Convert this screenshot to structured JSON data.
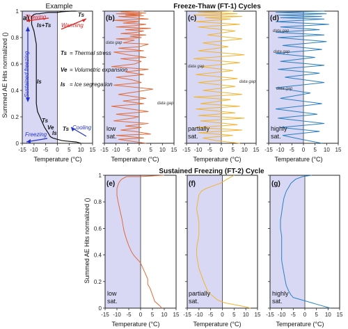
{
  "figure": {
    "top_title": "Freeze-Thaw (FT-1) Cycles",
    "bottom_title": "Sustained Freezing (FT-2) Cycle",
    "ylabel": "Summed AE Hits normalized ()",
    "xlabel": "Temperature (°C)"
  },
  "colors": {
    "shade": "#d8d8f5",
    "low": "#e06a3a",
    "partial": "#f2b431",
    "high": "#2a7fc0",
    "blue_text": "#2233cc",
    "red_text": "#dd2222"
  },
  "example": {
    "panel_label": "a)",
    "title": "Example",
    "thawing": "Thawing",
    "warming": "Warming",
    "cooling": "Cooling",
    "freezing": "Freezing",
    "sustained": "Sustained freezing",
    "ts1": "Ts",
    "is_ts": "Is+Ts",
    "is_mid": "Is",
    "ve": "Ve",
    "ts_low": "Ts",
    "is_low": "Is",
    "ts2": "Ts",
    "legend_ts": "Ts",
    "legend_ts_text": "= Thermal stress",
    "legend_ve": "Ve",
    "legend_ve_text": "= Volumetric expansion",
    "legend_is": "Is",
    "legend_is_text": "= Ice segregation"
  },
  "panels": {
    "b": {
      "label": "(b)",
      "caption1": "low",
      "caption2": "sat.",
      "gap1": "data gap",
      "gap2": "data gap"
    },
    "c": {
      "label": "(c)",
      "caption1": "partially",
      "caption2": "sat.",
      "gap1": "data gap",
      "gap2": "data gap"
    },
    "d": {
      "label": "(d)",
      "caption1": "highly",
      "caption2": "sat.",
      "gap1": "data gap",
      "gap2": "data gap",
      "gap3": "data gap"
    },
    "e": {
      "label": "(e)",
      "caption1": "low",
      "caption2": "sat."
    },
    "f": {
      "label": "(f)",
      "caption1": "partially",
      "caption2": "sat."
    },
    "g": {
      "label": "(g)",
      "caption1": "highly",
      "caption2": "sat."
    }
  },
  "chart_data": [
    {
      "id": "a",
      "type": "line",
      "xlim": [
        -15,
        15
      ],
      "ylim": [
        0,
        1
      ],
      "xticks": [
        -15,
        -10,
        -5,
        0,
        5,
        10,
        15
      ],
      "yticks": [
        0,
        0.2,
        0.4,
        0.6,
        0.8,
        1
      ],
      "series": [
        {
          "color": "#111111",
          "x": [
            10,
            8,
            5,
            2,
            0,
            -2,
            -3,
            -4,
            -5.5,
            -6.5,
            -7.5,
            -8.5,
            -9,
            -9,
            -9,
            -9,
            -10,
            -11,
            -11,
            -11,
            -10,
            -9,
            -8,
            -6,
            -4,
            -2,
            0,
            2,
            4,
            6,
            8
          ],
          "y": [
            0,
            0.01,
            0.015,
            0.02,
            0.03,
            0.04,
            0.05,
            0.08,
            0.12,
            0.16,
            0.2,
            0.24,
            0.3,
            0.45,
            0.6,
            0.75,
            0.85,
            0.9,
            0.94,
            0.96,
            0.975,
            0.98,
            0.98,
            0.985,
            0.99,
            0.99,
            0.99,
            0.995,
            0.998,
            1.0,
            1.0
          ]
        }
      ]
    },
    {
      "id": "b",
      "type": "line",
      "xlim": [
        -15,
        15
      ],
      "ylim": [
        0,
        1
      ],
      "xticks": [
        -15,
        -10,
        -5,
        0,
        5,
        10,
        15
      ],
      "yticks": [
        0,
        0.2,
        0.4,
        0.6,
        0.8,
        1
      ],
      "series": [
        {
          "color": "#e06a3a",
          "x": [
            3,
            -1,
            -5,
            -9,
            2,
            -10,
            5,
            -2,
            -8,
            1,
            -6,
            4,
            -11,
            -3,
            0,
            -10,
            4,
            -4,
            -12,
            2,
            -7,
            3,
            -9,
            -1,
            6,
            -11,
            1,
            -3,
            -10,
            2,
            -6,
            4,
            -12,
            -2,
            1,
            -8,
            3,
            -5,
            -11,
            2,
            -9,
            0,
            4,
            -7,
            -2,
            -10,
            1,
            -4,
            3,
            -8,
            -1,
            2,
            -6,
            5,
            -10,
            -2,
            3,
            -7,
            0,
            -11,
            4,
            -3,
            -9,
            2,
            -6,
            1,
            -10,
            3,
            -4,
            -8,
            2
          ],
          "y": [
            0,
            0.01,
            0.02,
            0.03,
            0.04,
            0.06,
            0.07,
            0.09,
            0.1,
            0.12,
            0.13,
            0.15,
            0.17,
            0.19,
            0.2,
            0.22,
            0.24,
            0.26,
            0.28,
            0.3,
            0.32,
            0.34,
            0.37,
            0.39,
            0.41,
            0.44,
            0.46,
            0.48,
            0.5,
            0.52,
            0.54,
            0.56,
            0.58,
            0.6,
            0.62,
            0.64,
            0.65,
            0.67,
            0.69,
            0.7,
            0.72,
            0.73,
            0.75,
            0.76,
            0.78,
            0.79,
            0.8,
            0.81,
            0.82,
            0.83,
            0.84,
            0.85,
            0.86,
            0.87,
            0.88,
            0.89,
            0.9,
            0.91,
            0.92,
            0.93,
            0.94,
            0.95,
            0.96,
            0.965,
            0.97,
            0.975,
            0.98,
            0.985,
            0.99,
            0.995,
            1.0
          ]
        }
      ]
    },
    {
      "id": "c",
      "type": "line",
      "xlim": [
        -15,
        15
      ],
      "ylim": [
        0,
        1
      ],
      "xticks": [
        -15,
        -10,
        -5,
        0,
        5,
        10,
        15
      ],
      "yticks": [
        0,
        0.2,
        0.4,
        0.6,
        0.8,
        1
      ],
      "series": [
        {
          "color": "#f2b431",
          "x": [
            8,
            -2,
            -8,
            5,
            -10,
            9,
            -11,
            7,
            -9,
            10,
            -10,
            6,
            -11,
            8,
            -9,
            4,
            -12,
            9,
            -8,
            6,
            -10,
            7,
            -11,
            5,
            -9,
            8,
            -12,
            10,
            -10,
            3,
            -8,
            9,
            -6,
            6,
            -10,
            8,
            -11,
            4,
            -7,
            9,
            -12,
            7,
            -10,
            5
          ],
          "y": [
            0,
            0.02,
            0.04,
            0.06,
            0.08,
            0.1,
            0.12,
            0.14,
            0.17,
            0.19,
            0.21,
            0.23,
            0.26,
            0.28,
            0.3,
            0.33,
            0.35,
            0.37,
            0.4,
            0.43,
            0.46,
            0.49,
            0.52,
            0.55,
            0.58,
            0.61,
            0.64,
            0.67,
            0.7,
            0.73,
            0.76,
            0.79,
            0.82,
            0.85,
            0.88,
            0.9,
            0.92,
            0.94,
            0.95,
            0.96,
            0.97,
            0.98,
            0.99,
            1.0
          ]
        }
      ]
    },
    {
      "id": "d",
      "type": "line",
      "xlim": [
        -15,
        15
      ],
      "ylim": [
        0,
        1
      ],
      "xticks": [
        -15,
        -10,
        -5,
        0,
        5,
        10,
        15
      ],
      "yticks": [
        0,
        0.2,
        0.4,
        0.6,
        0.8,
        1
      ],
      "series": [
        {
          "color": "#2a7fc0",
          "x": [
            8,
            -1,
            -9,
            7,
            -10,
            9,
            -11,
            6,
            -12,
            8,
            -10,
            3,
            -12,
            9,
            -8,
            7,
            -11,
            9,
            -10,
            5,
            -12,
            8,
            -9,
            10,
            -11,
            9,
            -12,
            7,
            -10,
            11,
            -12,
            9,
            -10,
            8,
            -11,
            10,
            -12,
            9
          ],
          "y": [
            0,
            0.03,
            0.06,
            0.09,
            0.12,
            0.15,
            0.19,
            0.22,
            0.26,
            0.3,
            0.34,
            0.38,
            0.42,
            0.46,
            0.5,
            0.53,
            0.56,
            0.59,
            0.62,
            0.65,
            0.68,
            0.71,
            0.74,
            0.77,
            0.8,
            0.82,
            0.84,
            0.86,
            0.88,
            0.9,
            0.92,
            0.94,
            0.95,
            0.96,
            0.97,
            0.98,
            0.99,
            1.0
          ]
        }
      ]
    },
    {
      "id": "e",
      "type": "line",
      "xlim": [
        -15,
        15
      ],
      "ylim": [
        0,
        1
      ],
      "xticks": [
        -15,
        -10,
        -5,
        0,
        5,
        10,
        15
      ],
      "yticks": [
        0,
        0.2,
        0.4,
        0.6,
        0.8,
        1
      ],
      "series": [
        {
          "color": "#e06a3a",
          "x": [
            9,
            8,
            6,
            5,
            4,
            3,
            3,
            2,
            1,
            0,
            -1,
            -2,
            -3,
            -4,
            -5,
            -6,
            -7,
            -7.5,
            -8,
            -8.5,
            -9,
            -9.5,
            -10,
            -10,
            -9.5,
            -9,
            -8,
            -7,
            -6,
            0,
            10
          ],
          "y": [
            0,
            0.02,
            0.05,
            0.1,
            0.15,
            0.18,
            0.22,
            0.26,
            0.3,
            0.34,
            0.36,
            0.38,
            0.4,
            0.43,
            0.47,
            0.52,
            0.58,
            0.63,
            0.68,
            0.72,
            0.76,
            0.8,
            0.85,
            0.9,
            0.93,
            0.95,
            0.97,
            0.98,
            0.99,
            0.99,
            1.0
          ]
        }
      ]
    },
    {
      "id": "f",
      "type": "line",
      "xlim": [
        -15,
        15
      ],
      "ylim": [
        0,
        1
      ],
      "xticks": [
        -15,
        -10,
        -5,
        0,
        5,
        10,
        15
      ],
      "yticks": [
        0,
        0.2,
        0.4,
        0.6,
        0.8,
        1
      ],
      "series": [
        {
          "color": "#f2b431",
          "x": [
            12,
            10,
            7,
            4,
            1,
            -2,
            -4,
            -6,
            -7,
            -8,
            -9,
            -10,
            -10.5,
            -11,
            -11,
            -10.5,
            -10,
            -10,
            -10,
            -10.5,
            -11,
            -10.5,
            -10,
            -9,
            -7,
            -4,
            -1,
            2,
            5
          ],
          "y": [
            0,
            0.01,
            0.02,
            0.03,
            0.04,
            0.06,
            0.09,
            0.12,
            0.16,
            0.2,
            0.25,
            0.3,
            0.35,
            0.4,
            0.45,
            0.5,
            0.55,
            0.6,
            0.65,
            0.7,
            0.75,
            0.8,
            0.85,
            0.88,
            0.9,
            0.92,
            0.94,
            0.97,
            1.0
          ]
        }
      ]
    },
    {
      "id": "g",
      "type": "line",
      "xlim": [
        -15,
        15
      ],
      "ylim": [
        0,
        1
      ],
      "xticks": [
        -15,
        -10,
        -5,
        0,
        5,
        10,
        15
      ],
      "yticks": [
        0,
        0.2,
        0.4,
        0.6,
        0.8,
        1
      ],
      "series": [
        {
          "color": "#2a7fc0",
          "x": [
            11,
            9,
            7,
            5,
            3,
            1,
            -1,
            -3,
            -5,
            -6,
            -7,
            -8,
            -8.5,
            -9,
            -9.5,
            -10,
            -10,
            -10,
            -10,
            -10.5,
            -10.5,
            -10,
            -9.5,
            -9,
            -8,
            -7,
            -6,
            -4,
            -1,
            3
          ],
          "y": [
            0,
            0.01,
            0.02,
            0.03,
            0.04,
            0.05,
            0.06,
            0.07,
            0.08,
            0.1,
            0.13,
            0.17,
            0.21,
            0.26,
            0.31,
            0.36,
            0.42,
            0.48,
            0.54,
            0.6,
            0.66,
            0.72,
            0.78,
            0.83,
            0.88,
            0.91,
            0.94,
            0.97,
            0.99,
            1.0
          ]
        }
      ]
    }
  ]
}
